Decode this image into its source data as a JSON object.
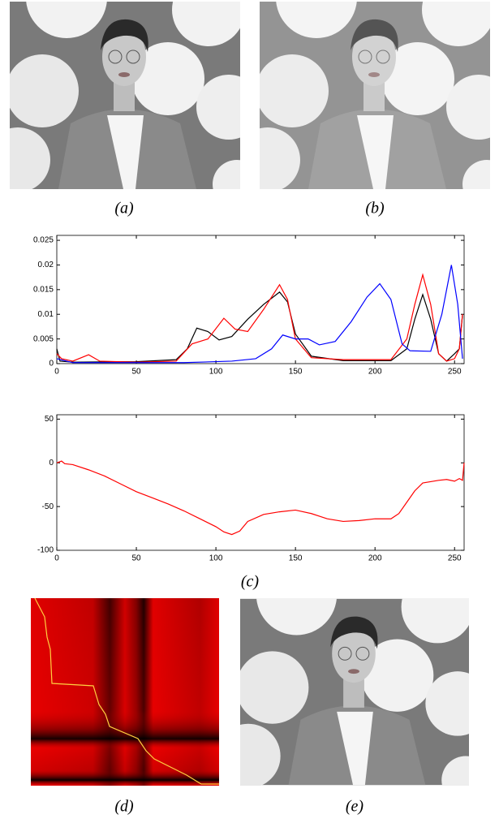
{
  "panels": {
    "a": "(a)",
    "b": "(b)",
    "c": "(c)",
    "d": "(d)",
    "e": "(e)"
  },
  "chart_data": [
    {
      "type": "line",
      "xlim": [
        0,
        256
      ],
      "xticks": [
        0,
        50,
        100,
        150,
        200,
        250
      ],
      "ylim": [
        0,
        0.026
      ],
      "yticks": [
        0,
        0.005,
        0.01,
        0.015,
        0.02,
        0.025
      ],
      "series": [
        {
          "color": "#000000",
          "x": [
            0,
            2,
            10,
            50,
            75,
            82,
            88,
            95,
            102,
            110,
            120,
            130,
            140,
            145,
            150,
            160,
            180,
            210,
            220,
            225,
            230,
            235,
            240,
            245,
            250,
            253,
            255
          ],
          "values": [
            0.003,
            0.0005,
            0.0003,
            0.0004,
            0.0008,
            0.003,
            0.0072,
            0.0065,
            0.0048,
            0.0055,
            0.009,
            0.012,
            0.0145,
            0.0125,
            0.006,
            0.0015,
            0.0006,
            0.0006,
            0.003,
            0.009,
            0.014,
            0.009,
            0.002,
            0.0005,
            0.002,
            0.003,
            0.01
          ]
        },
        {
          "color": "#ff0000",
          "x": [
            0,
            3,
            10,
            20,
            27,
            50,
            75,
            85,
            95,
            105,
            112,
            120,
            130,
            140,
            145,
            150,
            160,
            180,
            210,
            220,
            225,
            230,
            235,
            240,
            245,
            250,
            253,
            255
          ],
          "values": [
            0.002,
            0.001,
            0.0005,
            0.0018,
            0.0005,
            0.0003,
            0.0005,
            0.004,
            0.005,
            0.0092,
            0.007,
            0.0065,
            0.011,
            0.016,
            0.013,
            0.005,
            0.0012,
            0.0008,
            0.0008,
            0.005,
            0.012,
            0.018,
            0.012,
            0.002,
            0.0005,
            0.001,
            0.003,
            0.01
          ]
        },
        {
          "color": "#0000ff",
          "x": [
            0,
            10,
            80,
            110,
            125,
            135,
            142,
            150,
            158,
            165,
            175,
            185,
            195,
            203,
            210,
            217,
            222,
            235,
            242,
            248,
            252,
            255
          ],
          "values": [
            0.001,
            0.0002,
            0.0002,
            0.0005,
            0.001,
            0.003,
            0.0058,
            0.005,
            0.005,
            0.0038,
            0.0045,
            0.0085,
            0.0135,
            0.0162,
            0.013,
            0.004,
            0.0026,
            0.0025,
            0.01,
            0.02,
            0.012,
            0.001
          ]
        }
      ]
    },
    {
      "type": "line",
      "xlim": [
        0,
        256
      ],
      "xticks": [
        0,
        50,
        100,
        150,
        200,
        250
      ],
      "ylim": [
        -100,
        55
      ],
      "yticks": [
        -100,
        -50,
        0,
        50
      ],
      "series": [
        {
          "color": "#ff0000",
          "x": [
            0,
            3,
            5,
            10,
            20,
            30,
            40,
            50,
            60,
            70,
            80,
            90,
            100,
            105,
            110,
            115,
            120,
            130,
            140,
            150,
            160,
            170,
            180,
            190,
            200,
            210,
            215,
            220,
            225,
            230,
            240,
            245,
            250,
            253,
            255,
            256
          ],
          "values": [
            0,
            2,
            -1,
            -2,
            -8,
            -15,
            -24,
            -33,
            -40,
            -47,
            -55,
            -64,
            -73,
            -79,
            -82,
            -78,
            -67,
            -59,
            -56,
            -54,
            -58,
            -64,
            -67,
            -66,
            -64,
            -64,
            -58,
            -45,
            -32,
            -23,
            -20,
            -19,
            -21,
            -18,
            -20,
            0
          ]
        }
      ]
    }
  ]
}
